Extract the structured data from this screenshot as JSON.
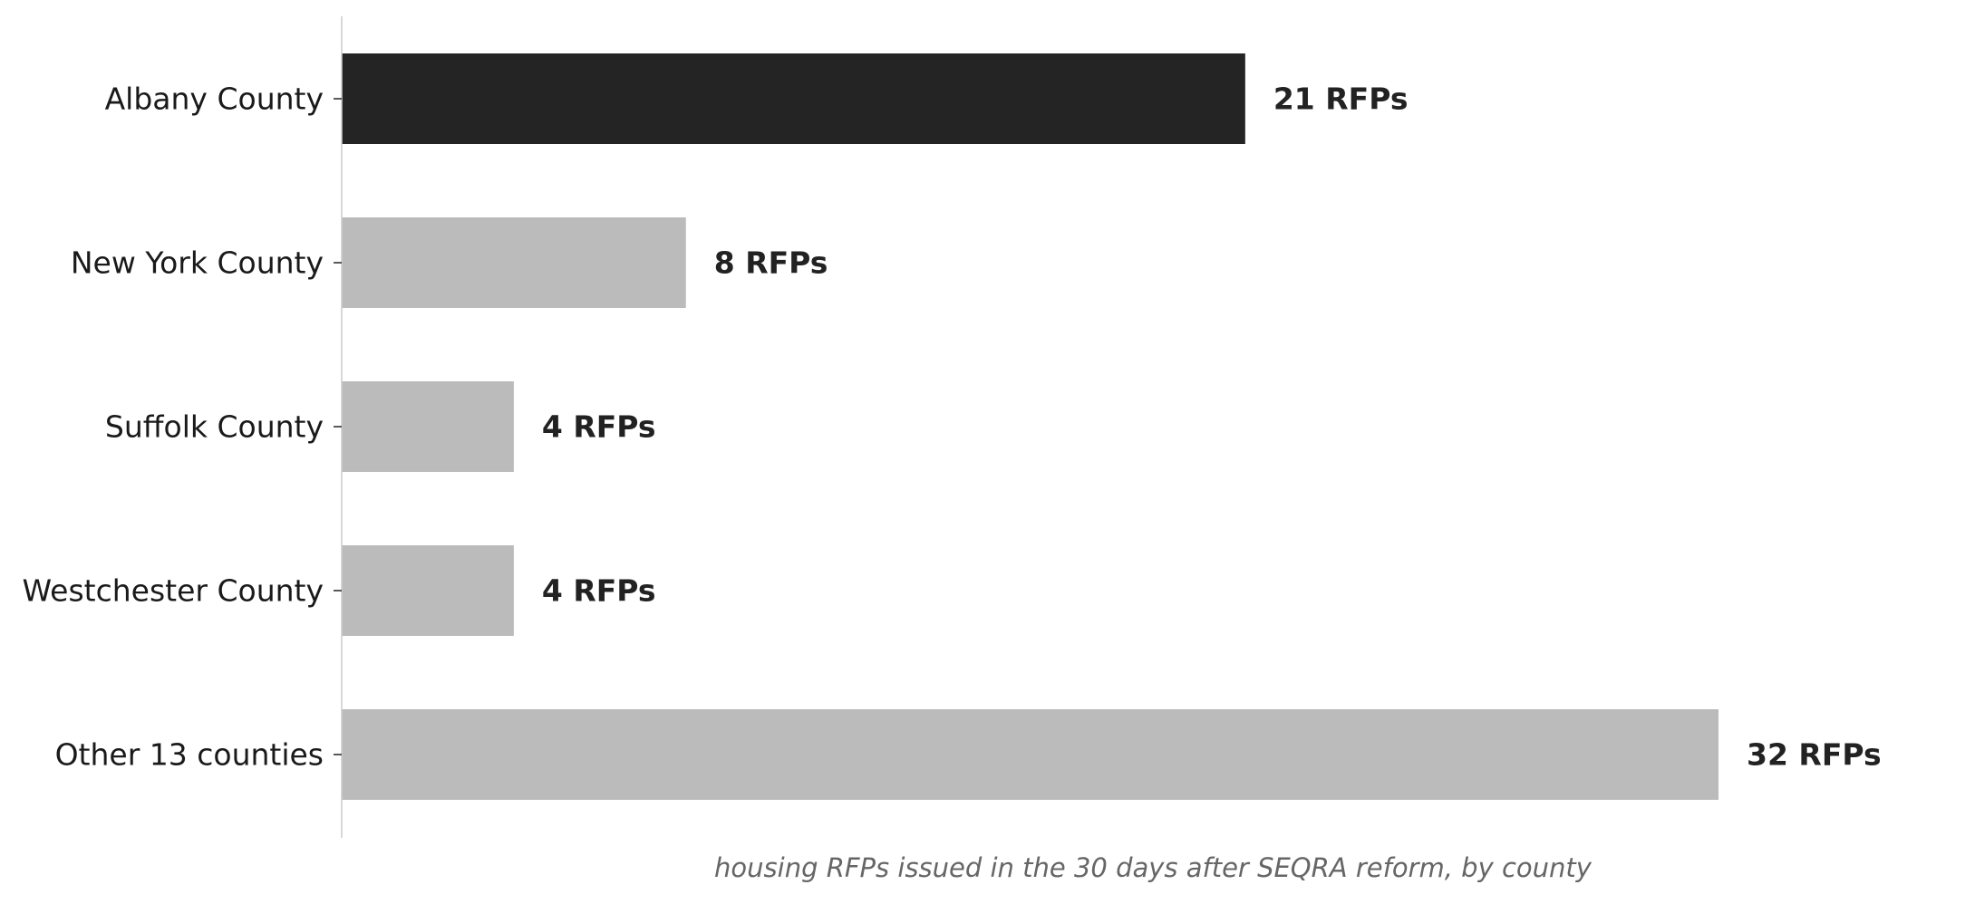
{
  "chart_data": {
    "type": "bar",
    "orientation": "horizontal",
    "categories": [
      "Albany County",
      "New York County",
      "Suffolk County",
      "Westchester County",
      "Other 13 counties"
    ],
    "values": [
      21,
      8,
      4,
      4,
      32
    ],
    "value_labels": [
      "21 RFPs",
      "8 RFPs",
      "4 RFPs",
      "4 RFPs",
      "32 RFPs"
    ],
    "highlight_index": 0,
    "colors": {
      "highlight": "#242424",
      "default": "#bbbbbb",
      "axis": "#cccccc"
    },
    "xlim": [
      0,
      32
    ],
    "grid": false,
    "caption": "housing RFPs issued in the 30 days after SEQRA reform, by county"
  }
}
